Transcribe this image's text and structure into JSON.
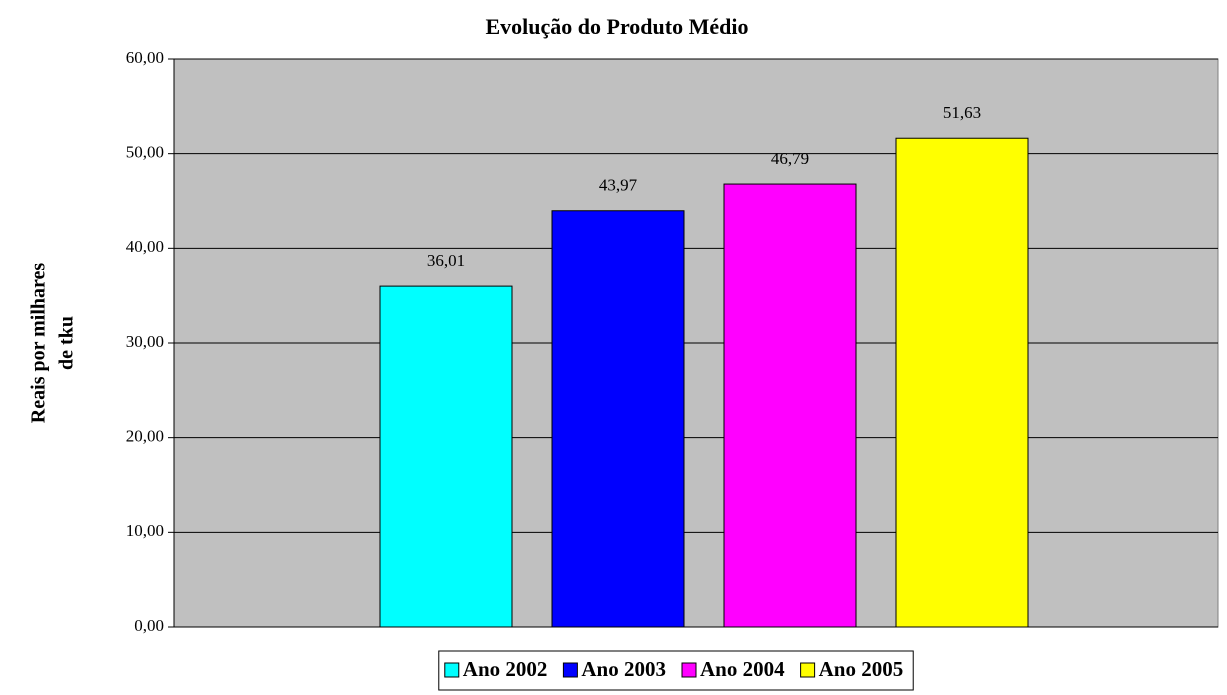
{
  "chart_data": {
    "type": "bar",
    "title": "Evolução do Produto Médio",
    "ylabel": [
      "Reais por milhares",
      "de tku"
    ],
    "categories": [
      null
    ],
    "series": [
      {
        "name": "Ano 2002",
        "color": "#00ffff",
        "values": [
          36.01
        ],
        "value_labels": [
          "36,01"
        ]
      },
      {
        "name": "Ano 2003",
        "color": "#0000ff",
        "values": [
          43.97
        ],
        "value_labels": [
          "43,97"
        ]
      },
      {
        "name": "Ano 2004",
        "color": "#ff00ff",
        "values": [
          46.79
        ],
        "value_labels": [
          "46,79"
        ]
      },
      {
        "name": "Ano 2005",
        "color": "#ffff00",
        "values": [
          51.63
        ],
        "value_labels": [
          "51,63"
        ]
      }
    ],
    "ylim": [
      0,
      60
    ],
    "yticks": [
      {
        "value": 0,
        "label": "0,00"
      },
      {
        "value": 10,
        "label": "10,00"
      },
      {
        "value": 20,
        "label": "20,00"
      },
      {
        "value": 30,
        "label": "30,00"
      },
      {
        "value": 40,
        "label": "40,00"
      },
      {
        "value": 50,
        "label": "50,00"
      },
      {
        "value": 60,
        "label": "60,00"
      }
    ],
    "grid": true,
    "plot_background": "#c0c0c0",
    "legend": "bottom"
  }
}
